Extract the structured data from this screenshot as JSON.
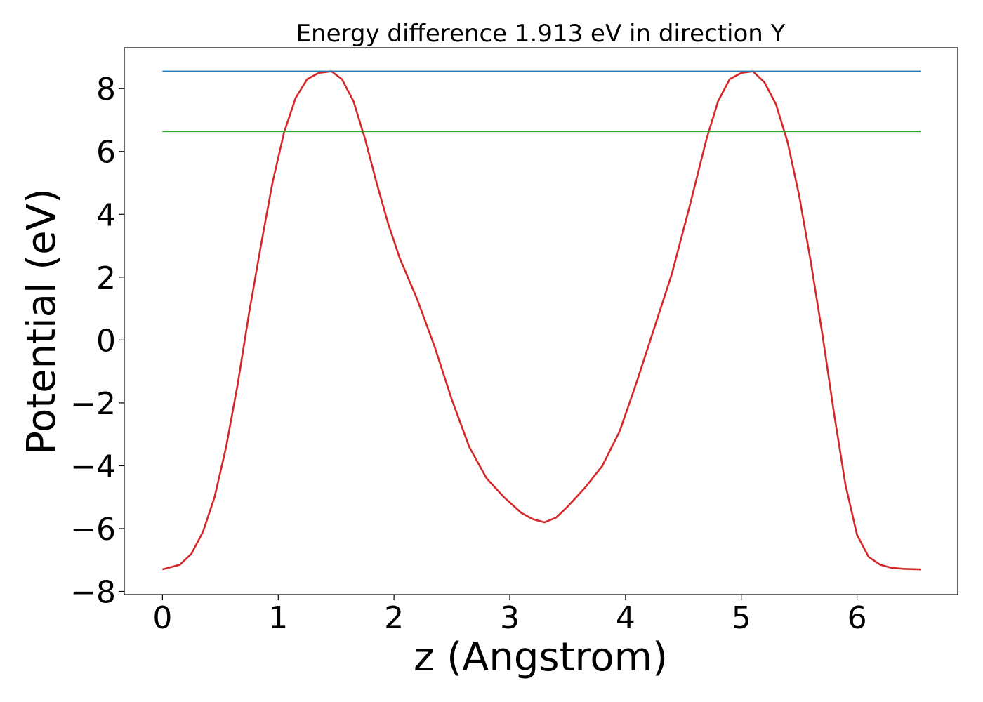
{
  "chart_data": {
    "type": "line",
    "title": "Energy difference 1.913 eV in direction Y",
    "xlabel": "z (Angstrom)",
    "ylabel": "Potential (eV)",
    "xlim": [
      -0.33,
      6.87
    ],
    "ylim": [
      -8.1,
      9.3
    ],
    "xticks": [
      0,
      1,
      2,
      3,
      4,
      5,
      6
    ],
    "yticks": [
      -8,
      -6,
      -4,
      -2,
      0,
      2,
      4,
      6,
      8
    ],
    "xtick_labels": [
      "0",
      "1",
      "2",
      "3",
      "4",
      "5",
      "6"
    ],
    "ytick_labels": [
      "−8",
      "−6",
      "−4",
      "−2",
      "0",
      "2",
      "4",
      "6",
      "8"
    ],
    "grid": false,
    "legend": "none",
    "series": [
      {
        "color": "#d62728",
        "x": [
          0.0,
          0.15,
          0.25,
          0.35,
          0.45,
          0.55,
          0.65,
          0.75,
          0.85,
          0.95,
          1.05,
          1.15,
          1.25,
          1.35,
          1.46,
          1.55,
          1.65,
          1.75,
          1.85,
          1.95,
          2.05,
          2.2,
          2.35,
          2.5,
          2.65,
          2.8,
          2.95,
          3.1,
          3.2,
          3.3,
          3.4,
          3.5,
          3.65,
          3.8,
          3.95,
          4.1,
          4.25,
          4.4,
          4.55,
          4.7,
          4.8,
          4.9,
          5.0,
          5.1,
          5.2,
          5.3,
          5.4,
          5.5,
          5.6,
          5.7,
          5.8,
          5.9,
          6.0,
          6.1,
          6.2,
          6.3,
          6.4,
          6.55
        ],
        "y": [
          -7.3,
          -7.15,
          -6.8,
          -6.1,
          -5.0,
          -3.4,
          -1.4,
          0.9,
          3.0,
          5.0,
          6.6,
          7.7,
          8.3,
          8.5,
          8.55,
          8.3,
          7.6,
          6.4,
          5.0,
          3.7,
          2.6,
          1.3,
          -0.2,
          -1.9,
          -3.4,
          -4.4,
          -5.0,
          -5.5,
          -5.7,
          -5.8,
          -5.65,
          -5.3,
          -4.7,
          -4.0,
          -2.9,
          -1.3,
          0.4,
          2.1,
          4.2,
          6.4,
          7.6,
          8.3,
          8.5,
          8.55,
          8.2,
          7.5,
          6.3,
          4.6,
          2.5,
          0.2,
          -2.3,
          -4.6,
          -6.2,
          -6.9,
          -7.15,
          -7.25,
          -7.28,
          -7.3
        ]
      },
      {
        "color": "#1f77b4",
        "x": [
          0.0,
          6.55
        ],
        "y": [
          8.55,
          8.55
        ]
      },
      {
        "color": "#2ca02c",
        "x": [
          0.0,
          6.55
        ],
        "y": [
          6.64,
          6.64
        ]
      }
    ]
  }
}
